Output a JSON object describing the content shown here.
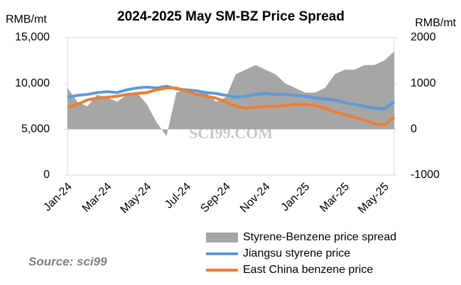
{
  "chart_data": {
    "type": "combo",
    "title": "2024-2025 May SM-BZ Price Spread",
    "y_label": "RMB/mt",
    "y2_label": "RMB/mt",
    "source": "Source: sci99",
    "watermark": "SCI99.COM",
    "categories": [
      "Jan-24",
      null,
      null,
      null,
      "Mar-24",
      null,
      null,
      null,
      "May-24",
      null,
      null,
      null,
      "Jul-24",
      null,
      null,
      null,
      "Sep-24",
      null,
      null,
      null,
      "Nov-24",
      null,
      null,
      null,
      "Jan-25",
      null,
      null,
      null,
      "Mar-25",
      null,
      null,
      null,
      "May-25",
      null
    ],
    "series": [
      {
        "name": "Styrene-Benzene price spread",
        "kind": "area",
        "axis": "y2",
        "color": "#a6a6a6",
        "values": [
          900,
          600,
          500,
          750,
          700,
          600,
          750,
          800,
          550,
          150,
          -150,
          800,
          900,
          800,
          800,
          600,
          700,
          1200,
          1300,
          1400,
          1300,
          1200,
          1000,
          900,
          800,
          800,
          900,
          1200,
          1300,
          1300,
          1400,
          1400,
          1500,
          1700
        ]
      },
      {
        "name": "Jiangsu styrene price",
        "kind": "line",
        "color": "#5b9bd5",
        "values": [
          8500,
          8700,
          8800,
          9000,
          9100,
          9000,
          9300,
          9500,
          9600,
          9500,
          9700,
          9400,
          9300,
          9200,
          9000,
          8900,
          8700,
          8500,
          8600,
          8800,
          8900,
          8800,
          8800,
          8700,
          8600,
          8400,
          8300,
          8200,
          7900,
          7700,
          7500,
          7300,
          7200,
          8000
        ]
      },
      {
        "name": "East China benzene price",
        "kind": "line",
        "color": "#ed7d31",
        "values": [
          7400,
          7700,
          8200,
          8400,
          8500,
          8600,
          8800,
          8900,
          9000,
          9300,
          9500,
          9500,
          9200,
          8800,
          8600,
          8400,
          8000,
          7500,
          7300,
          7400,
          7500,
          7500,
          7600,
          7700,
          7700,
          7600,
          7300,
          6900,
          6600,
          6300,
          6000,
          5600,
          5500,
          6300
        ]
      }
    ],
    "ylim": [
      0,
      15000
    ],
    "yticks": [
      0,
      {
        "value": 5000,
        "label": "5,000"
      },
      {
        "value": 10000,
        "label": "10,000"
      },
      {
        "value": 15000,
        "label": "15,000"
      }
    ],
    "y2lim": [
      -1000,
      2000
    ],
    "y2ticks": [
      -1000,
      0,
      1000,
      2000
    ]
  }
}
